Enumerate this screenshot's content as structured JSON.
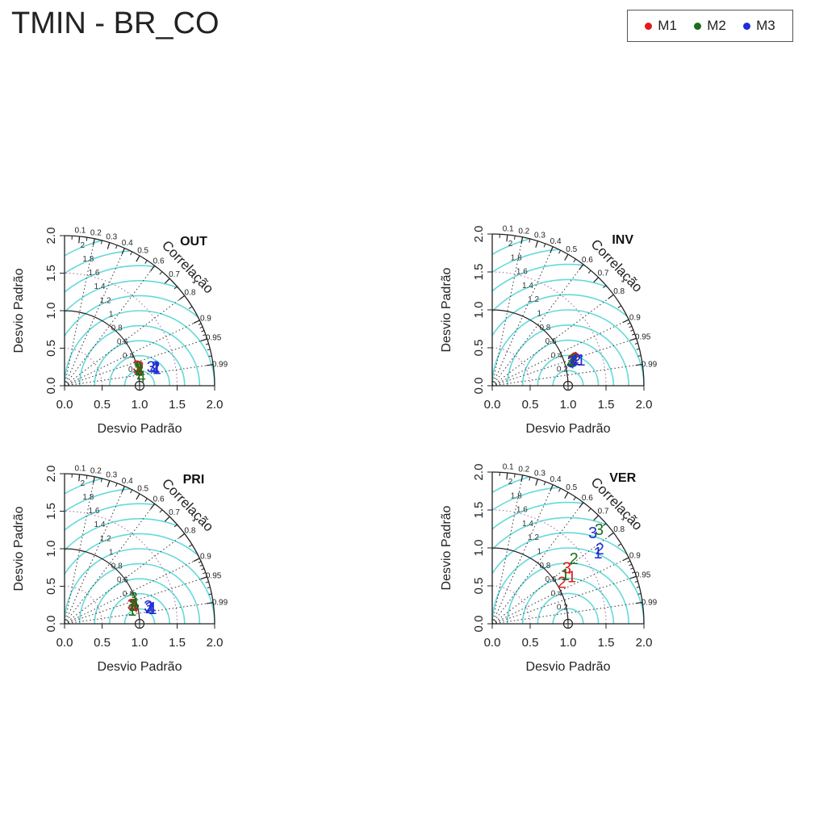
{
  "title": "TMIN - BR_CO",
  "legend": [
    {
      "label": "M1",
      "color": "#e31a1c"
    },
    {
      "label": "M2",
      "color": "#1b6e1b"
    },
    {
      "label": "M3",
      "color": "#1f2fd6"
    }
  ],
  "colors": {
    "rms_arcs": "#66d9d9",
    "axis": "#222222",
    "sd_arcs": "#b07ab0",
    "corr_rays": "#333333"
  },
  "chart_data": [
    {
      "type": "scatter",
      "subtype": "taylor-diagram",
      "panel_title": "OUT",
      "xlabel": "Desvio Padrão",
      "ylabel": "Desvio Padrão",
      "arc_label": "Correlação",
      "xlim": [
        0,
        2
      ],
      "ylim": [
        0,
        2
      ],
      "x_ticks": [
        "0.0",
        "0.5",
        "1.0",
        "1.5",
        "2.0"
      ],
      "y_ticks": [
        "0.0",
        "0.5",
        "1.0",
        "1.5",
        "2.0"
      ],
      "correlation_ticks": [
        "0.1",
        "0.2",
        "0.3",
        "0.4",
        "0.5",
        "0.6",
        "0.7",
        "0.8",
        "0.9",
        "0.95",
        "0.99"
      ],
      "rms_labels": [
        "0.2",
        "0.4",
        "0.6",
        "0.8",
        "1",
        "1.2",
        "1.4",
        "1.6",
        "1.8",
        "2"
      ],
      "reference_sd": 1.0,
      "points": [
        {
          "label": "1",
          "model": "M1",
          "sd": 1.0,
          "corr": 0.97
        },
        {
          "label": "2",
          "model": "M1",
          "sd": 1.03,
          "corr": 0.97
        },
        {
          "label": "3",
          "model": "M1",
          "sd": 1.0,
          "corr": 0.965
        },
        {
          "label": "4",
          "model": "M1",
          "sd": 1.02,
          "corr": 0.98
        },
        {
          "label": "1",
          "model": "M2",
          "sd": 1.0,
          "corr": 0.975
        },
        {
          "label": "2",
          "model": "M2",
          "sd": 1.02,
          "corr": 0.978
        },
        {
          "label": "3",
          "model": "M2",
          "sd": 1.01,
          "corr": 0.97
        },
        {
          "label": "4",
          "model": "M2",
          "sd": 1.03,
          "corr": 0.993
        },
        {
          "label": "1",
          "model": "M3",
          "sd": 1.25,
          "corr": 0.983
        },
        {
          "label": "2",
          "model": "M3",
          "sd": 1.24,
          "corr": 0.979
        },
        {
          "label": "3",
          "model": "M3",
          "sd": 1.18,
          "corr": 0.977
        },
        {
          "label": "4",
          "model": "M3",
          "sd": 1.22,
          "corr": 0.981
        }
      ]
    },
    {
      "type": "scatter",
      "subtype": "taylor-diagram",
      "panel_title": "INV",
      "xlabel": "Desvio Padrão",
      "ylabel": "Desvio Padrão",
      "arc_label": "Correlação",
      "xlim": [
        0,
        2
      ],
      "ylim": [
        0,
        2
      ],
      "x_ticks": [
        "0.0",
        "0.5",
        "1.0",
        "1.5",
        "2.0"
      ],
      "y_ticks": [
        "0.0",
        "0.5",
        "1.0",
        "1.5",
        "2.0"
      ],
      "correlation_ticks": [
        "0.1",
        "0.2",
        "0.3",
        "0.4",
        "0.5",
        "0.6",
        "0.7",
        "0.8",
        "0.9",
        "0.95",
        "0.99"
      ],
      "rms_labels": [
        "0.2",
        "0.4",
        "0.6",
        "0.8",
        "1",
        "1.2",
        "1.4",
        "1.6",
        "1.8",
        "2"
      ],
      "reference_sd": 1.0,
      "points": [
        {
          "label": "1",
          "model": "M1",
          "sd": 1.12,
          "corr": 0.95
        },
        {
          "label": "2",
          "model": "M1",
          "sd": 1.15,
          "corr": 0.948
        },
        {
          "label": "3",
          "model": "M1",
          "sd": 1.1,
          "corr": 0.952
        },
        {
          "label": "4",
          "model": "M1",
          "sd": 1.14,
          "corr": 0.945
        },
        {
          "label": "1",
          "model": "M2",
          "sd": 1.1,
          "corr": 0.955
        },
        {
          "label": "2",
          "model": "M2",
          "sd": 1.13,
          "corr": 0.95
        },
        {
          "label": "3",
          "model": "M2",
          "sd": 1.11,
          "corr": 0.956
        },
        {
          "label": "4",
          "model": "M2",
          "sd": 1.08,
          "corr": 0.96
        },
        {
          "label": "1",
          "model": "M3",
          "sd": 1.22,
          "corr": 0.96
        },
        {
          "label": "2",
          "model": "M3",
          "sd": 1.17,
          "corr": 0.955
        },
        {
          "label": "3",
          "model": "M3",
          "sd": 1.09,
          "corr": 0.958
        },
        {
          "label": "4",
          "model": "M3",
          "sd": 1.13,
          "corr": 0.955
        }
      ]
    },
    {
      "type": "scatter",
      "subtype": "taylor-diagram",
      "panel_title": "PRI",
      "xlabel": "Desvio Padrão",
      "ylabel": "Desvio Padrão",
      "arc_label": "Correlação",
      "xlim": [
        0,
        2
      ],
      "ylim": [
        0,
        2
      ],
      "x_ticks": [
        "0.0",
        "0.5",
        "1.0",
        "1.5",
        "2.0"
      ],
      "y_ticks": [
        "0.0",
        "0.5",
        "1.0",
        "1.5",
        "2.0"
      ],
      "correlation_ticks": [
        "0.1",
        "0.2",
        "0.3",
        "0.4",
        "0.5",
        "0.6",
        "0.7",
        "0.8",
        "0.9",
        "0.95",
        "0.99"
      ],
      "rms_labels": [
        "0.2",
        "0.4",
        "0.6",
        "0.8",
        "1",
        "1.2",
        "1.4",
        "1.6",
        "1.8",
        "2"
      ],
      "reference_sd": 1.0,
      "points": [
        {
          "label": "1",
          "model": "M1",
          "sd": 0.97,
          "corr": 0.965
        },
        {
          "label": "2",
          "model": "M1",
          "sd": 0.95,
          "corr": 0.962
        },
        {
          "label": "3",
          "model": "M1",
          "sd": 0.93,
          "corr": 0.96
        },
        {
          "label": "4",
          "model": "M1",
          "sd": 0.96,
          "corr": 0.97
        },
        {
          "label": "1",
          "model": "M2",
          "sd": 0.92,
          "corr": 0.98
        },
        {
          "label": "2",
          "model": "M2",
          "sd": 0.95,
          "corr": 0.965
        },
        {
          "label": "3",
          "model": "M2",
          "sd": 0.98,
          "corr": 0.935
        },
        {
          "label": "4",
          "model": "M2",
          "sd": 0.97,
          "corr": 0.96
        },
        {
          "label": "1",
          "model": "M3",
          "sd": 1.19,
          "corr": 0.985
        },
        {
          "label": "2",
          "model": "M3",
          "sd": 1.15,
          "corr": 0.982
        },
        {
          "label": "3",
          "model": "M3",
          "sd": 1.14,
          "corr": 0.978
        },
        {
          "label": "4",
          "model": "M3",
          "sd": 1.18,
          "corr": 0.983
        }
      ]
    },
    {
      "type": "scatter",
      "subtype": "taylor-diagram",
      "panel_title": "VER",
      "xlabel": "Desvio Padrão",
      "ylabel": "Desvio Padrão",
      "arc_label": "Correlação",
      "xlim": [
        0,
        2
      ],
      "ylim": [
        0,
        2
      ],
      "x_ticks": [
        "0.0",
        "0.5",
        "1.0",
        "1.5",
        "2.0"
      ],
      "y_ticks": [
        "0.0",
        "0.5",
        "1.0",
        "1.5",
        "2.0"
      ],
      "correlation_ticks": [
        "0.1",
        "0.2",
        "0.3",
        "0.4",
        "0.5",
        "0.6",
        "0.7",
        "0.8",
        "0.9",
        "0.95",
        "0.99"
      ],
      "rms_labels": [
        "0.2",
        "0.4",
        "0.6",
        "0.8",
        "1",
        "1.2",
        "1.4",
        "1.6",
        "1.8",
        "2"
      ],
      "reference_sd": 1.0,
      "points": [
        {
          "label": "1",
          "model": "M1",
          "sd": 1.22,
          "corr": 0.86
        },
        {
          "label": "2",
          "model": "M1",
          "sd": 1.07,
          "corr": 0.86
        },
        {
          "label": "3",
          "model": "M1",
          "sd": 1.23,
          "corr": 0.8
        },
        {
          "label": "1",
          "model": "M2",
          "sd": 1.16,
          "corr": 0.83
        },
        {
          "label": "2",
          "model": "M2",
          "sd": 1.38,
          "corr": 0.78
        },
        {
          "label": "3",
          "model": "M2",
          "sd": 1.88,
          "corr": 0.75
        },
        {
          "label": "1",
          "model": "M3",
          "sd": 1.68,
          "corr": 0.83
        },
        {
          "label": "2",
          "model": "M3",
          "sd": 1.73,
          "corr": 0.82
        },
        {
          "label": "3",
          "model": "M3",
          "sd": 1.79,
          "corr": 0.74
        }
      ]
    }
  ]
}
